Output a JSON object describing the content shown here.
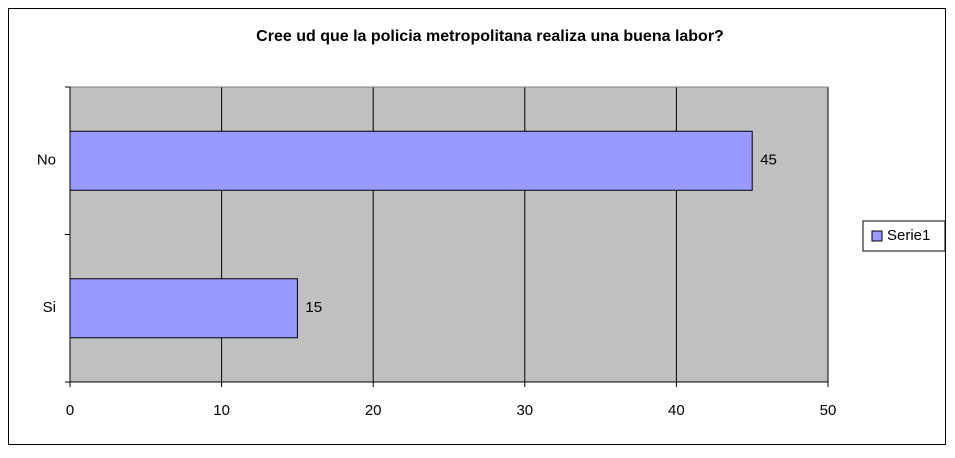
{
  "chart_data": {
    "type": "bar",
    "orientation": "horizontal",
    "title": "Cree ud que la policia metropolitana realiza una buena labor?",
    "categories": [
      "No",
      "Si"
    ],
    "series": [
      {
        "name": "Serie1",
        "color": "#9999ff",
        "values": [
          45,
          15
        ]
      }
    ],
    "xlim": [
      0,
      50
    ],
    "xticks": [
      0,
      10,
      20,
      30,
      40,
      50
    ],
    "grid": true,
    "legend": "right"
  }
}
